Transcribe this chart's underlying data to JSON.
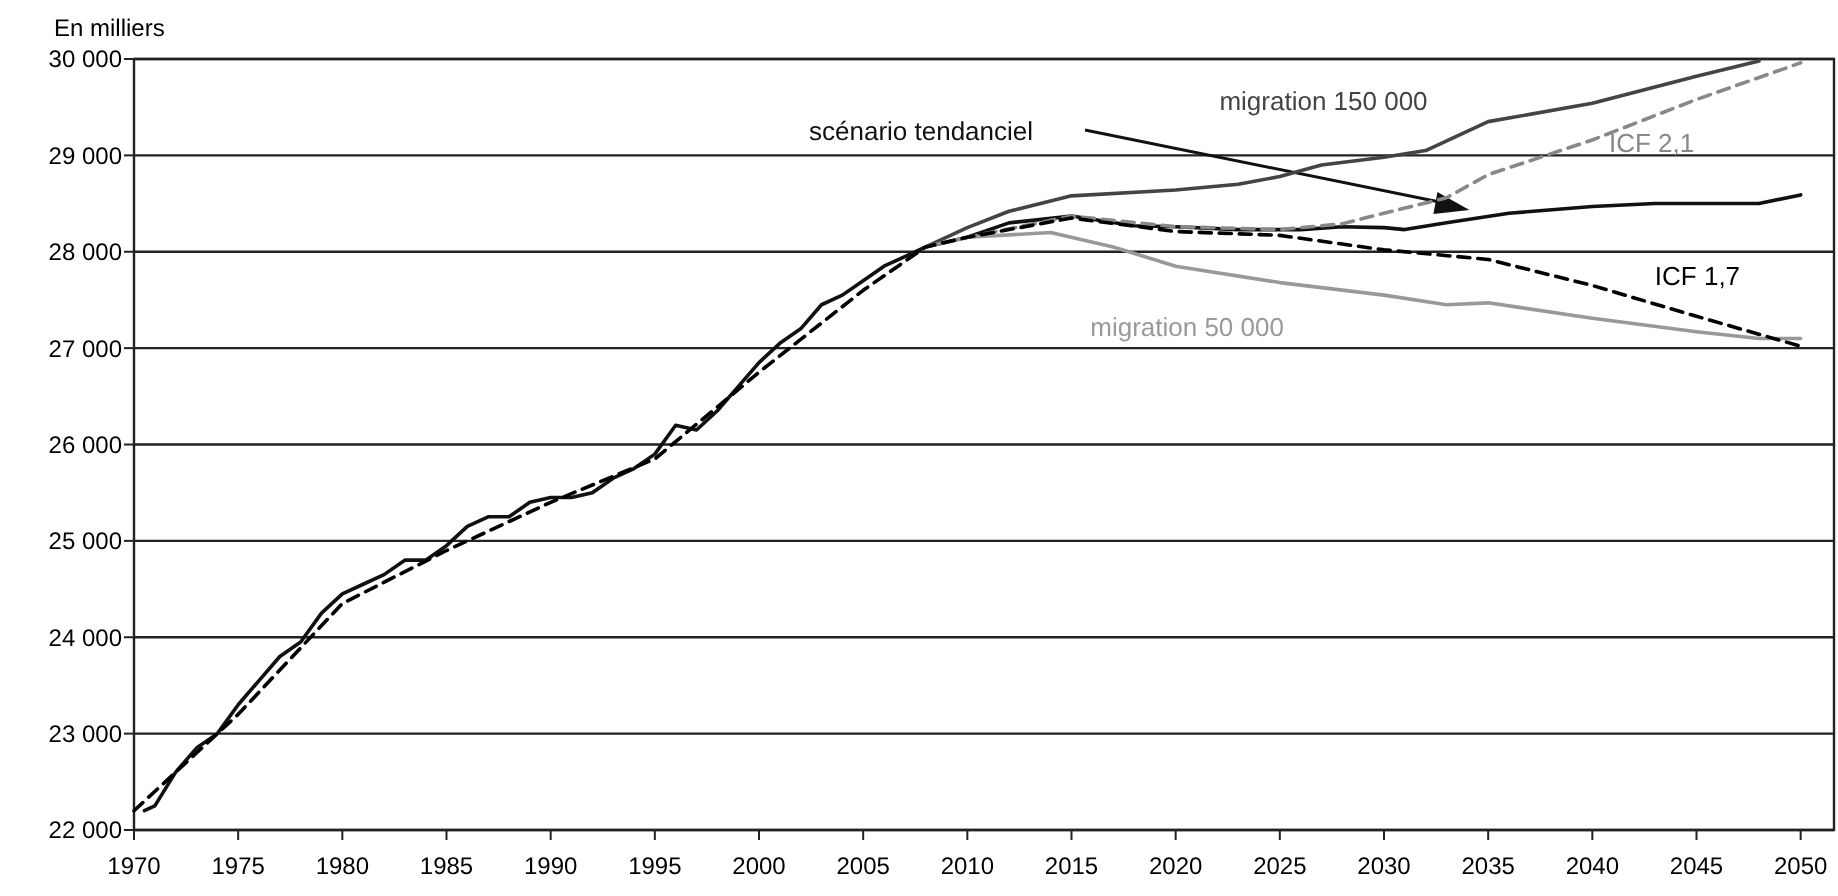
{
  "chart_data": {
    "type": "line",
    "ylabel": "En milliers",
    "xlim": [
      1970,
      2051.6
    ],
    "xticks": [
      1970,
      1975,
      1980,
      1985,
      1990,
      1995,
      2000,
      2005,
      2010,
      2015,
      2020,
      2025,
      2030,
      2035,
      2040,
      2045,
      2050
    ],
    "ylim": [
      22000,
      30000
    ],
    "yticks": [
      {
        "value": 22000,
        "label": "22 000"
      },
      {
        "value": 23000,
        "label": "23 000"
      },
      {
        "value": 24000,
        "label": "24 000"
      },
      {
        "value": 25000,
        "label": "25 000"
      },
      {
        "value": 26000,
        "label": "26 000"
      },
      {
        "value": 27000,
        "label": "27 000"
      },
      {
        "value": 28000,
        "label": "28 000"
      },
      {
        "value": 29000,
        "label": "29 000"
      },
      {
        "value": 30000,
        "label": "30 000"
      }
    ],
    "grid": "y",
    "legend": false,
    "marker": "none",
    "series": [
      {
        "name": "scénario tendanciel",
        "color": "#111111",
        "line_style": "solid",
        "x": [
          1970.5,
          1971,
          1972,
          1973,
          1974,
          1975,
          1976,
          1977,
          1978,
          1979,
          1980,
          1981,
          1982,
          1983,
          1984,
          1985,
          1986,
          1987,
          1988,
          1989,
          1990,
          1991,
          1992,
          1993,
          1994,
          1995,
          1996,
          1997,
          1998,
          1999,
          2000,
          2001,
          2002,
          2003,
          2004,
          2005,
          2006,
          2007,
          2008,
          2010,
          2012,
          2015,
          2018,
          2020,
          2023,
          2026,
          2028,
          2030,
          2031,
          2033,
          2036,
          2040,
          2043,
          2048,
          2050
        ],
        "values": [
          22200,
          22250,
          22600,
          22850,
          23000,
          23300,
          23550,
          23800,
          23950,
          24250,
          24450,
          24550,
          24650,
          24800,
          24800,
          24950,
          25150,
          25250,
          25250,
          25400,
          25450,
          25450,
          25500,
          25650,
          25750,
          25900,
          26200,
          26150,
          26350,
          26600,
          26850,
          27050,
          27200,
          27450,
          27550,
          27700,
          27850,
          27950,
          28050,
          28150,
          28300,
          28370,
          28270,
          28260,
          28230,
          28230,
          28260,
          28250,
          28230,
          28300,
          28400,
          28470,
          28500,
          28500,
          28590
        ]
      },
      {
        "name": "migration 150 000",
        "color": "#444444",
        "line_style": "solid",
        "x": [
          2008,
          2010,
          2012,
          2015,
          2020,
          2023,
          2025,
          2027,
          2030,
          2032,
          2035,
          2040,
          2045,
          2048
        ],
        "values": [
          28050,
          28250,
          28420,
          28580,
          28640,
          28700,
          28780,
          28900,
          28980,
          29050,
          29350,
          29540,
          29820,
          29980
        ]
      },
      {
        "name": "migration 50 000",
        "color": "#999999",
        "line_style": "solid",
        "x": [
          2008,
          2010,
          2014,
          2017,
          2020,
          2025,
          2030,
          2033,
          2035,
          2040,
          2045,
          2048,
          2050
        ],
        "values": [
          28050,
          28150,
          28200,
          28050,
          27850,
          27680,
          27550,
          27450,
          27470,
          27310,
          27170,
          27100,
          27100
        ]
      },
      {
        "name": "ICF 2,1",
        "color": "#888888",
        "line_style": "dashed",
        "x": [
          2008,
          2010,
          2015,
          2020,
          2025,
          2028,
          2030,
          2033,
          2035,
          2040,
          2045,
          2050
        ],
        "values": [
          28050,
          28150,
          28370,
          28260,
          28230,
          28290,
          28400,
          28560,
          28800,
          29160,
          29580,
          29960
        ]
      },
      {
        "name": "ICF 1,7",
        "color": "#000000",
        "line_style": "dashed",
        "x": [
          1970,
          1975,
          1980,
          1985,
          1990,
          1995,
          2000,
          2005,
          2008,
          2010,
          2015,
          2020,
          2025,
          2030,
          2035,
          2040,
          2045,
          2050
        ],
        "values": [
          22200,
          23200,
          24350,
          24900,
          25400,
          25850,
          26750,
          27600,
          28050,
          28150,
          28350,
          28210,
          28170,
          28020,
          27920,
          27650,
          27330,
          27020
        ]
      }
    ]
  }
}
